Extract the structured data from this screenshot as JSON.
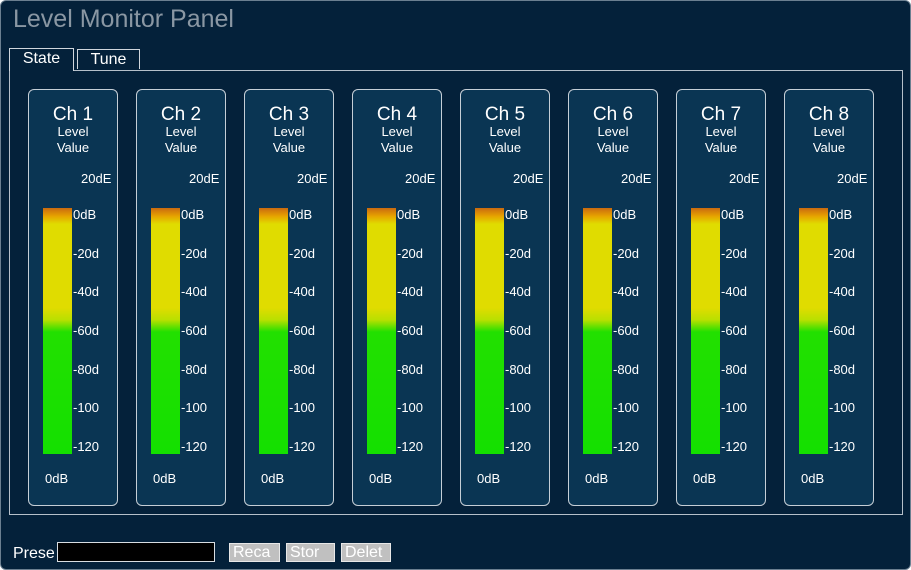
{
  "window": {
    "title": "Level Monitor Panel"
  },
  "tabs": [
    {
      "label": "State",
      "active": true
    },
    {
      "label": "Tune",
      "active": false
    }
  ],
  "meter_scale": {
    "top_label": "20dE",
    "ticks": [
      "0dB",
      "-20d",
      "-40d",
      "-60d",
      "-80d",
      "-100",
      "-120"
    ],
    "gradient_colors": {
      "peak": "#c96a10",
      "high": "#e0dc00",
      "low": "#14e000"
    }
  },
  "channels": [
    {
      "name": "Ch 1",
      "level_label": "Level",
      "value_label": "Value",
      "value": "0dB"
    },
    {
      "name": "Ch 2",
      "level_label": "Level",
      "value_label": "Value",
      "value": "0dB"
    },
    {
      "name": "Ch 3",
      "level_label": "Level",
      "value_label": "Value",
      "value": "0dB"
    },
    {
      "name": "Ch 4",
      "level_label": "Level",
      "value_label": "Value",
      "value": "0dB"
    },
    {
      "name": "Ch 5",
      "level_label": "Level",
      "value_label": "Value",
      "value": "0dB"
    },
    {
      "name": "Ch 6",
      "level_label": "Level",
      "value_label": "Value",
      "value": "0dB"
    },
    {
      "name": "Ch 7",
      "level_label": "Level",
      "value_label": "Value",
      "value": "0dB"
    },
    {
      "name": "Ch 8",
      "level_label": "Level",
      "value_label": "Value",
      "value": "0dB"
    }
  ],
  "preset": {
    "label": "Prese",
    "input_value": "",
    "recall_label": "Reca",
    "store_label": "Stor",
    "delete_label": "Delet"
  },
  "colors": {
    "background": "#04213a",
    "channel_panel": "#0a3553",
    "title_text": "#8a97a3"
  }
}
